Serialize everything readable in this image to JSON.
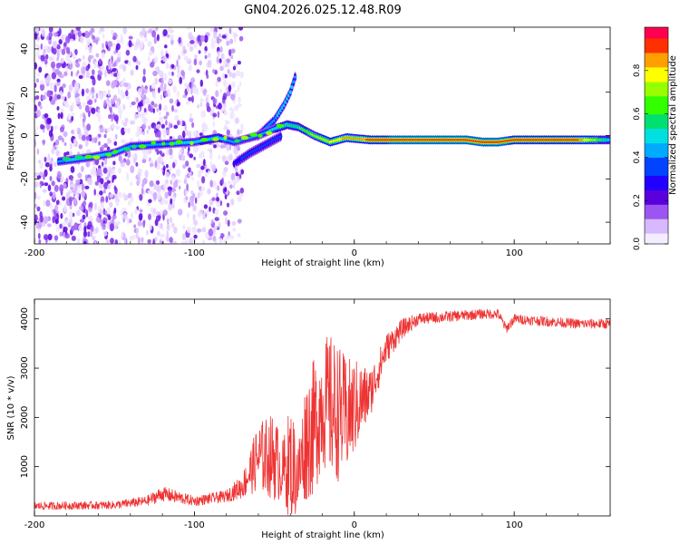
{
  "title": "GN04.2026.025.12.48.R09",
  "chart_data": [
    {
      "type": "heatmap",
      "xlabel": "Height of straight line (km)",
      "ylabel": "Frequency (Hz)",
      "xlim": [
        -200,
        160
      ],
      "ylim": [
        -50,
        50
      ],
      "xticks": [
        -200,
        -100,
        0,
        100
      ],
      "xtick_labels": [
        "-200",
        "-100",
        "0",
        "100"
      ],
      "yticks": [
        -40,
        -20,
        0,
        20,
        40
      ],
      "ytick_labels": [
        "-40",
        "-20",
        "0",
        "20",
        "40"
      ],
      "colorbar": {
        "label": "Normalized spectral amplitude",
        "range": [
          0,
          1
        ],
        "ticks": [
          0,
          0.2,
          0.4,
          0.6,
          0.8
        ],
        "tick_labels": [
          "0.0",
          "0.2",
          "0.4",
          "0.6",
          "0.8"
        ],
        "colors": [
          "#f4ecff",
          "#d7b9ff",
          "#9b55f0",
          "#5a00dd",
          "#2200ff",
          "#0044ff",
          "#00aaff",
          "#00e0e0",
          "#00e070",
          "#33ff00",
          "#99ff00",
          "#ffff00",
          "#ffa000",
          "#ff3000",
          "#ff0050"
        ]
      },
      "signal_track": {
        "x": [
          -185,
          -165,
          -150,
          -140,
          -120,
          -100,
          -85,
          -75,
          -60,
          -50,
          -42,
          -35,
          -25,
          -15,
          -5,
          10,
          40,
          70,
          80,
          90,
          100,
          120,
          140,
          160
        ],
        "y": [
          -12,
          -10,
          -8,
          -5,
          -4,
          -3,
          -1,
          -3,
          0,
          3,
          5,
          4,
          0,
          -3,
          -1,
          -2,
          -2,
          -2,
          -3,
          -3,
          -2,
          -2,
          -2,
          -2
        ],
        "amplitude": [
          0.45,
          0.5,
          0.5,
          0.45,
          0.45,
          0.5,
          0.55,
          0.4,
          0.4,
          0.5,
          0.6,
          0.6,
          0.7,
          0.75,
          0.85,
          0.9,
          0.95,
          0.95,
          0.95,
          0.95,
          0.9,
          0.9,
          0.9,
          0.5
        ]
      },
      "rising_branch": {
        "x": [
          -60,
          -50,
          -44,
          -40,
          -37
        ],
        "y": [
          0,
          7,
          14,
          20,
          27
        ],
        "amplitude": [
          0.4,
          0.45,
          0.5,
          0.5,
          0.4
        ]
      },
      "falling_branch": {
        "x": [
          -75,
          -65,
          -55,
          -45
        ],
        "y": [
          -13,
          -8,
          -4,
          0
        ],
        "amplitude": [
          0.3,
          0.35,
          0.35,
          0.35
        ]
      }
    },
    {
      "type": "line",
      "xlabel": "Height of straight line (km)",
      "ylabel": "SNR (10 * v/v)",
      "xlim": [
        -200,
        160
      ],
      "ylim": [
        0,
        4400
      ],
      "xticks": [
        -200,
        -100,
        0,
        100
      ],
      "xtick_labels": [
        "-200",
        "-100",
        "0",
        "100"
      ],
      "yticks": [
        1000,
        2000,
        3000,
        4000
      ],
      "ytick_labels": [
        "1000",
        "2000",
        "3000",
        "4000"
      ],
      "color": "#ee3333",
      "envelope": {
        "x": [
          -200,
          -150,
          -130,
          -120,
          -100,
          -80,
          -70,
          -60,
          -50,
          -45,
          -40,
          -35,
          -30,
          -25,
          -20,
          -15,
          -10,
          -5,
          0,
          10,
          20,
          30,
          40,
          60,
          80,
          90,
          95,
          100,
          120,
          140,
          160
        ],
        "center": [
          200,
          220,
          300,
          450,
          300,
          400,
          600,
          1200,
          1200,
          900,
          1100,
          800,
          1600,
          1800,
          2300,
          2200,
          2100,
          2000,
          2200,
          2500,
          3400,
          3800,
          4000,
          4050,
          4100,
          4100,
          3800,
          4000,
          3950,
          3900,
          3900
        ],
        "spread": [
          80,
          80,
          100,
          150,
          100,
          120,
          250,
          700,
          900,
          600,
          1200,
          800,
          1300,
          1400,
          1300,
          1500,
          1400,
          1200,
          1000,
          500,
          300,
          200,
          120,
          110,
          100,
          100,
          100,
          100,
          100,
          100,
          100
        ]
      }
    }
  ]
}
